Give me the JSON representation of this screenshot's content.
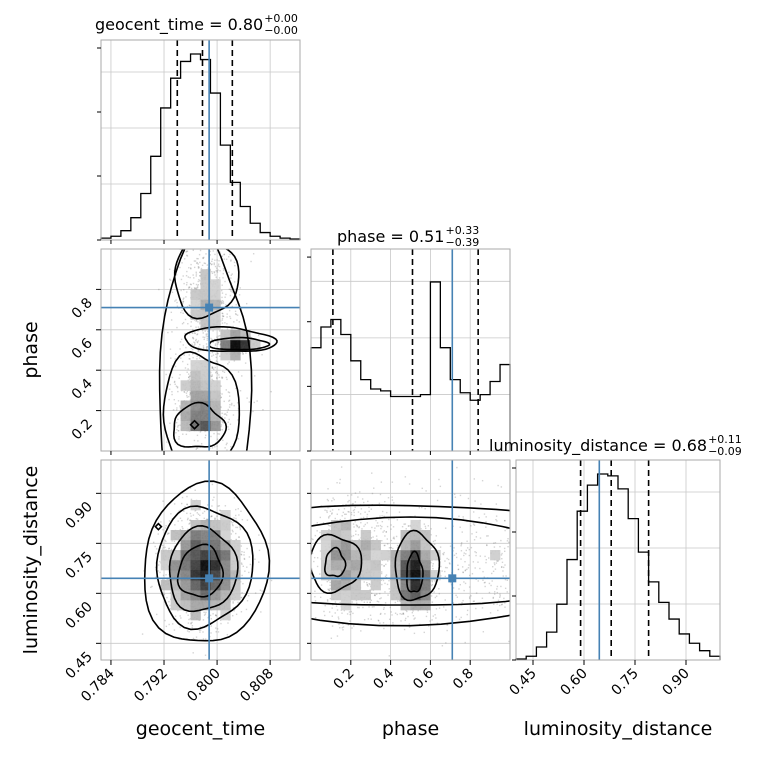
{
  "chart_data": {
    "type": "corner",
    "truth_color": "#4682b4",
    "parameters": [
      {
        "name": "geocent_time",
        "range": [
          0.7825,
          0.8125
        ],
        "ticks": [
          0.784,
          0.792,
          0.8,
          0.808
        ],
        "tick_labels": [
          "0.784",
          "0.792",
          "0.800",
          "0.808"
        ],
        "truth": 0.7988,
        "quantiles": [
          0.794,
          0.7978,
          0.8023
        ]
      },
      {
        "name": "phase",
        "range": [
          0.0,
          1.0
        ],
        "ticks": [
          0.2,
          0.4,
          0.6,
          0.8
        ],
        "tick_labels": [
          "0.2",
          "0.4",
          "0.6",
          "0.8"
        ],
        "truth": 0.71,
        "quantiles": [
          0.11,
          0.51,
          0.84
        ]
      },
      {
        "name": "luminosity_distance",
        "range": [
          0.4,
          1.0
        ],
        "ticks": [
          0.45,
          0.6,
          0.75,
          0.9
        ],
        "tick_labels": [
          "0.45",
          "0.60",
          "0.75",
          "0.90"
        ],
        "truth": 0.645,
        "quantiles": [
          0.59,
          0.68,
          0.79
        ]
      }
    ],
    "titles": [
      {
        "label": "geocent_time = 0.80",
        "plus": "+0.00",
        "minus": "−0.00"
      },
      {
        "label": "phase = 0.51",
        "plus": "+0.33",
        "minus": "−0.39"
      },
      {
        "label": "luminosity_distance = 0.68",
        "plus": "+0.11",
        "minus": "−0.09"
      }
    ],
    "histograms": {
      "geocent_time": [
        0.01,
        0.02,
        0.05,
        0.12,
        0.25,
        0.45,
        0.71,
        0.87,
        0.96,
        1.0,
        0.97,
        0.79,
        0.51,
        0.31,
        0.18,
        0.09,
        0.04,
        0.02,
        0.01,
        0.005
      ],
      "phase": [
        0.55,
        0.66,
        0.7,
        0.62,
        0.48,
        0.38,
        0.33,
        0.32,
        0.29,
        0.29,
        0.29,
        0.3,
        0.9,
        0.55,
        0.38,
        0.31,
        0.27,
        0.3,
        0.37,
        0.46
      ],
      "luminosity_distance": [
        0.005,
        0.02,
        0.07,
        0.15,
        0.3,
        0.54,
        0.8,
        0.94,
        1.0,
        0.99,
        0.92,
        0.76,
        0.58,
        0.42,
        0.31,
        0.22,
        0.14,
        0.09,
        0.05,
        0.02
      ]
    },
    "grid": true,
    "xlabel": [
      "geocent_time",
      "phase",
      "luminosity_distance"
    ],
    "ylabel": [
      "phase",
      "luminosity_distance"
    ]
  }
}
